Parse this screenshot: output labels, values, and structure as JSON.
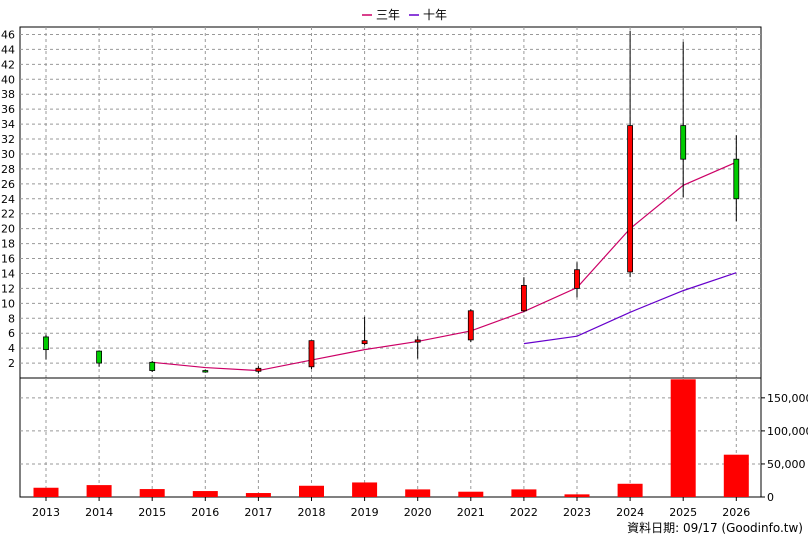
{
  "legend": [
    {
      "label": "三年",
      "color": "#cc0066"
    },
    {
      "label": "十年",
      "color": "#6600cc"
    }
  ],
  "footer": {
    "text": "資料日期: 09/17  (Goodinfo.tw)"
  },
  "colors": {
    "up": "#ff0000",
    "down": "#00cc00",
    "volume": "#ff0000",
    "grid": "#999999"
  },
  "chart_data": [
    {
      "type": "candlestick",
      "title": "",
      "categories": [
        "2013",
        "2014",
        "2015",
        "2016",
        "2017",
        "2018",
        "2019",
        "2020",
        "2021",
        "2022",
        "2023",
        "2024",
        "2025",
        "2026"
      ],
      "ylim": [
        0,
        47
      ],
      "yticks": [
        2,
        4,
        6,
        8,
        10,
        12,
        14,
        16,
        18,
        20,
        22,
        24,
        26,
        28,
        30,
        32,
        34,
        36,
        38,
        40,
        42,
        44,
        46
      ],
      "grid": true,
      "candles": [
        {
          "open": 5.5,
          "high": 5.8,
          "low": 2.5,
          "close": 3.8
        },
        {
          "open": 3.6,
          "high": 3.7,
          "low": 1.5,
          "close": 2.0
        },
        {
          "open": 2.1,
          "high": 2.3,
          "low": 0.8,
          "close": 1.0
        },
        {
          "open": 1.0,
          "high": 1.1,
          "low": 0.7,
          "close": 0.8
        },
        {
          "open": 0.9,
          "high": 1.6,
          "low": 0.6,
          "close": 1.3
        },
        {
          "open": 1.5,
          "high": 5.0,
          "low": 1.2,
          "close": 5.0
        },
        {
          "open": 4.6,
          "high": 8.2,
          "low": 4.4,
          "close": 5.0
        },
        {
          "open": 4.8,
          "high": 5.6,
          "low": 2.6,
          "close": 5.1
        },
        {
          "open": 5.1,
          "high": 9.2,
          "low": 4.8,
          "close": 9.0
        },
        {
          "open": 9.0,
          "high": 13.5,
          "low": 8.8,
          "close": 12.4
        },
        {
          "open": 12.0,
          "high": 15.5,
          "low": 10.8,
          "close": 14.5
        },
        {
          "open": 14.2,
          "high": 46.5,
          "low": 13.5,
          "close": 33.8
        },
        {
          "open": 33.8,
          "high": 45.0,
          "low": 24.2,
          "close": 29.3
        },
        {
          "open": 29.3,
          "high": 32.5,
          "low": 21.0,
          "close": 24.0
        }
      ],
      "series": [
        {
          "name": "三年",
          "values": [
            null,
            null,
            2.1,
            1.4,
            1.0,
            2.4,
            3.8,
            4.9,
            6.3,
            8.9,
            12.1,
            20.0,
            25.8,
            28.9
          ]
        },
        {
          "name": "十年",
          "values": [
            null,
            null,
            null,
            null,
            null,
            null,
            null,
            null,
            null,
            4.6,
            5.6,
            8.8,
            11.7,
            14.1
          ]
        }
      ]
    },
    {
      "type": "bar",
      "title": "",
      "categories": [
        "2013",
        "2014",
        "2015",
        "2016",
        "2017",
        "2018",
        "2019",
        "2020",
        "2021",
        "2022",
        "2023",
        "2024",
        "2025",
        "2026"
      ],
      "values": [
        14000,
        18000,
        12000,
        9000,
        6000,
        17000,
        22000,
        11500,
        8000,
        11500,
        4000,
        20000,
        178000,
        64000
      ],
      "ylim": [
        0,
        180000
      ],
      "yticks": [
        0,
        50000,
        100000,
        150000
      ],
      "yticklabels": [
        "0",
        "50,000",
        "100,000",
        "150,000"
      ],
      "grid": true
    }
  ]
}
